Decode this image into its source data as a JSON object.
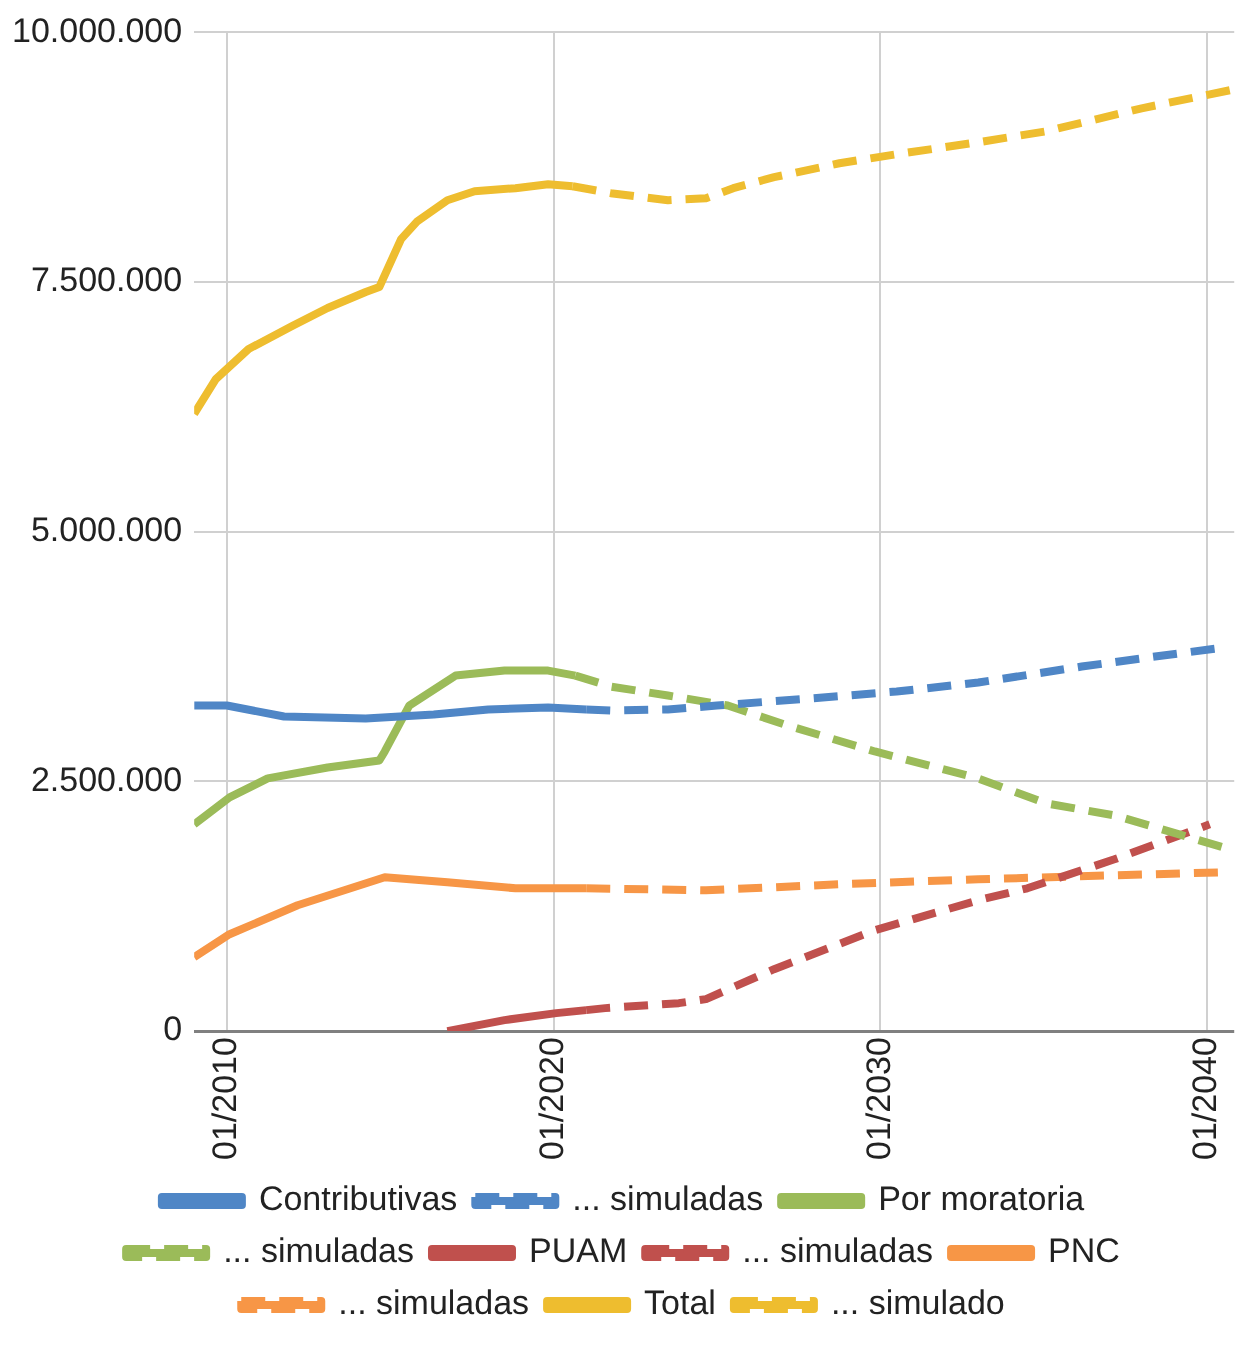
{
  "chart_data": {
    "type": "line",
    "xlim": [
      "2009-01",
      "2040-11"
    ],
    "xticks": [
      {
        "value": "2010-01",
        "label": "01/2010"
      },
      {
        "value": "2020-01",
        "label": "01/2020"
      },
      {
        "value": "2030-01",
        "label": "01/2030"
      },
      {
        "value": "2040-01",
        "label": "01/2040"
      }
    ],
    "ylim": [
      0,
      10000000
    ],
    "yticks": [
      0,
      {
        "value": 2500000,
        "label": "2.500.000"
      },
      {
        "value": 5000000,
        "label": "5.000.000"
      },
      {
        "value": 7500000,
        "label": "7.500.000"
      },
      {
        "value": 10000000,
        "label": "10.000.000"
      }
    ],
    "grid": true,
    "legend": "bottom",
    "marker": "none",
    "series": [
      {
        "name": "Contributivas",
        "color": "#4f86c6",
        "line_style": "solid",
        "x": [
          "2009-01",
          "2010-01",
          "2011-10",
          "2014-04",
          "2016-05",
          "2018-01",
          "2019-11",
          "2021-01"
        ],
        "values": [
          3260000,
          3260000,
          3150000,
          3130000,
          3170000,
          3220000,
          3240000,
          3220000
        ]
      },
      {
        "name": "... simuladas",
        "color": "#4f86c6",
        "line_style": "dashed",
        "x": [
          "2021-01",
          "2021-10",
          "2023-07",
          "2025-01",
          "2027-11",
          "2030-07",
          "2033-01",
          "2036-03",
          "2038-03",
          "2040-07"
        ],
        "values": [
          3220000,
          3210000,
          3220000,
          3260000,
          3330000,
          3400000,
          3490000,
          3650000,
          3740000,
          3840000
        ]
      },
      {
        "name": "Por moratoria",
        "color": "#9bbb59",
        "line_style": "solid",
        "x": [
          "2009-01",
          "2010-02",
          "2011-04",
          "2013-02",
          "2014-09",
          "2014-11",
          "2015-08",
          "2017-01",
          "2018-07",
          "2019-11",
          "2020-09"
        ],
        "values": [
          2070000,
          2340000,
          2530000,
          2640000,
          2710000,
          2800000,
          3260000,
          3560000,
          3610000,
          3610000,
          3560000
        ]
      },
      {
        "name": "... simuladas",
        "color": "#9bbb59",
        "line_style": "dashed",
        "x": [
          "2020-09",
          "2021-10",
          "2023-07",
          "2025-05",
          "2027-03",
          "2029-11",
          "2033-01",
          "2035-02",
          "2037-03",
          "2040-07"
        ],
        "values": [
          3560000,
          3450000,
          3360000,
          3260000,
          3060000,
          2800000,
          2530000,
          2280000,
          2160000,
          1840000
        ]
      },
      {
        "name": "PUAM",
        "color": "#c0504d",
        "line_style": "solid",
        "x": [
          "2016-10",
          "2018-07",
          "2020-02",
          "2021-01"
        ],
        "values": [
          0,
          110000,
          180000,
          210000
        ]
      },
      {
        "name": "... simuladas",
        "color": "#c0504d",
        "line_style": "dashed",
        "x": [
          "2021-01",
          "2021-08",
          "2023-11",
          "2024-09",
          "2026-10",
          "2029-11",
          "2033-01",
          "2034-07",
          "2037-03",
          "2040-02"
        ],
        "values": [
          210000,
          230000,
          280000,
          320000,
          620000,
          1010000,
          1310000,
          1430000,
          1720000,
          2070000
        ]
      },
      {
        "name": "PNC",
        "color": "#f79646",
        "line_style": "solid",
        "x": [
          "2009-01",
          "2010-02",
          "2012-03",
          "2014-11",
          "2016-10",
          "2018-11",
          "2021-01"
        ],
        "values": [
          740000,
          970000,
          1260000,
          1540000,
          1490000,
          1430000,
          1430000
        ]
      },
      {
        "name": "... simuladas",
        "color": "#f79646",
        "line_style": "dashed",
        "x": [
          "2021-01",
          "2024-09",
          "2028-10",
          "2033-01",
          "2037-03",
          "2040-07"
        ],
        "values": [
          1430000,
          1410000,
          1470000,
          1520000,
          1560000,
          1590000
        ]
      },
      {
        "name": "Total",
        "color": "#eebd2f",
        "line_style": "solid",
        "x": [
          "2009-01",
          "2009-09",
          "2010-09",
          "2012-01",
          "2013-02",
          "2014-04",
          "2014-09",
          "2015-05",
          "2015-11",
          "2016-10",
          "2017-08",
          "2018-11",
          "2019-11",
          "2020-08"
        ],
        "values": [
          6180000,
          6530000,
          6830000,
          7060000,
          7240000,
          7400000,
          7450000,
          7930000,
          8110000,
          8320000,
          8410000,
          8440000,
          8480000,
          8460000
        ]
      },
      {
        "name": "... simulado",
        "color": "#eebd2f",
        "line_style": "dashed",
        "x": [
          "2020-08",
          "2021-10",
          "2023-07",
          "2024-09",
          "2025-07",
          "2026-10",
          "2028-10",
          "2030-07",
          "2033-01",
          "2035-02",
          "2038-01",
          "2040-11"
        ],
        "values": [
          8460000,
          8390000,
          8320000,
          8340000,
          8440000,
          8550000,
          8690000,
          8780000,
          8900000,
          9010000,
          9240000,
          9430000
        ]
      }
    ]
  }
}
